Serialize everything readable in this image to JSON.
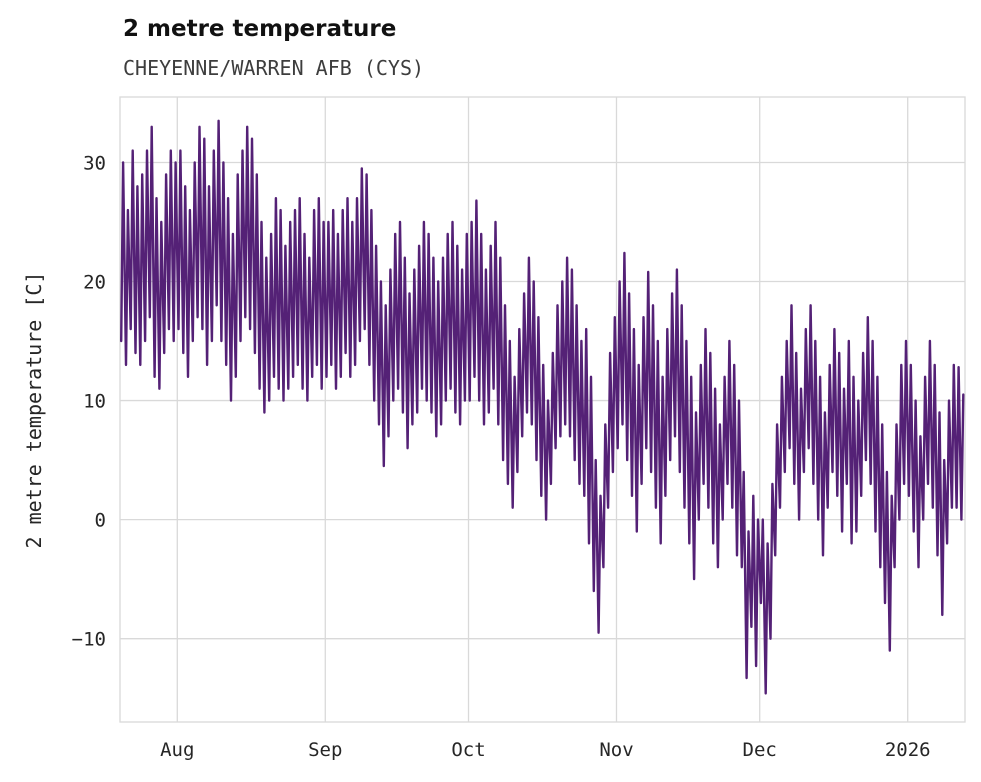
{
  "chart_data": {
    "type": "line",
    "title": "2 metre temperature",
    "subtitle": "CHEYENNE/WARREN AFB (CYS)",
    "xlabel": "",
    "ylabel": "2 metre temperature [C]",
    "line_color": "#542176",
    "grid_color": "#d9d9d9",
    "background": "#ffffff",
    "grid": true,
    "legend": "none",
    "ylim": [
      -17,
      35.5
    ],
    "yticks": [
      {
        "value": -10,
        "label": "−10"
      },
      {
        "value": 0,
        "label": "0"
      },
      {
        "value": 10,
        "label": "10"
      },
      {
        "value": 20,
        "label": "20"
      },
      {
        "value": 30,
        "label": "30"
      }
    ],
    "x_range": [
      0,
      177
    ],
    "x_description": "days across plot; series holds one daily min and max per day, Jul through early Jan",
    "xticks": [
      {
        "pos": 12,
        "label": "Aug"
      },
      {
        "pos": 43,
        "label": "Sep"
      },
      {
        "pos": 73,
        "label": "Oct"
      },
      {
        "pos": 104,
        "label": "Nov"
      },
      {
        "pos": 134,
        "label": "Dec"
      },
      {
        "pos": 165,
        "label": "2026"
      }
    ],
    "series": [
      {
        "name": "2 metre temperature",
        "daily_max": [
          30,
          26,
          31,
          28,
          29,
          31,
          33,
          27,
          25,
          29,
          31,
          30,
          31,
          28,
          26,
          30,
          33,
          32,
          28,
          31,
          33.5,
          30,
          27,
          24,
          29,
          31,
          33,
          32,
          29,
          25,
          22,
          24,
          27,
          26,
          23,
          25,
          26,
          27,
          24,
          22,
          26,
          27,
          25,
          25,
          26,
          24,
          26,
          27,
          25,
          27,
          29.5,
          29,
          26,
          23,
          20,
          18,
          21,
          24,
          25,
          22,
          19,
          21,
          23,
          25,
          24,
          22,
          20,
          22,
          24,
          25,
          23,
          21,
          24,
          25,
          26.8,
          24,
          21,
          23,
          25,
          22,
          18,
          15,
          12,
          16,
          19,
          22,
          20,
          17,
          13,
          10,
          14,
          18,
          20,
          22,
          21,
          18,
          15,
          16,
          12,
          5,
          2,
          8,
          14,
          17,
          20,
          22.4,
          19,
          16,
          13,
          17,
          20.8,
          18,
          15,
          12,
          16,
          19,
          21,
          18,
          15,
          12,
          9,
          13,
          16,
          14,
          11,
          8,
          12,
          15,
          13,
          10,
          4,
          -1,
          2,
          0,
          0,
          -2,
          3,
          8,
          12,
          15,
          18,
          14,
          11,
          16,
          18,
          15,
          12,
          9,
          13,
          16,
          14,
          11,
          15,
          12,
          10,
          14,
          17,
          15,
          12,
          8,
          4,
          2,
          8,
          13,
          15,
          13,
          10,
          7,
          12,
          15,
          13,
          9,
          5,
          10,
          13,
          12.8,
          10.5
        ],
        "daily_min": [
          15,
          13,
          16,
          14,
          13,
          15,
          17,
          12,
          11,
          14,
          16,
          15,
          16,
          14,
          12,
          15,
          17,
          16,
          13,
          15,
          18,
          15,
          13,
          10,
          12,
          15,
          17,
          16,
          14,
          11,
          9,
          10,
          12,
          11,
          10,
          11,
          12,
          13,
          11,
          10,
          12,
          13,
          11,
          12,
          13,
          11,
          12,
          14,
          12,
          13,
          15,
          16,
          13,
          10,
          8,
          4.5,
          7,
          10,
          11,
          9,
          6,
          8,
          9,
          11,
          10,
          9,
          7,
          8,
          10,
          11,
          9,
          8,
          10,
          10,
          12,
          10,
          8,
          9,
          11,
          8,
          5,
          3,
          1,
          4,
          7,
          9,
          8,
          5,
          2,
          0,
          3,
          6,
          7,
          8,
          7,
          5,
          3,
          2,
          -2,
          -6,
          -9.5,
          -4,
          1,
          4,
          6,
          8,
          5,
          2,
          -1,
          3,
          6,
          4,
          1,
          -2,
          2,
          5,
          7,
          4,
          1,
          -2,
          -5,
          0,
          3,
          1,
          -2,
          -4,
          0,
          3,
          1,
          -3,
          -4,
          -13.3,
          -9,
          -12.3,
          -7,
          -14.6,
          -10,
          -3,
          1,
          4,
          6,
          3,
          0,
          4,
          6,
          3,
          0,
          -3,
          1,
          4,
          2,
          -1,
          3,
          -2,
          -1,
          2,
          5,
          3,
          -1,
          -4,
          -7,
          -11,
          -4,
          0,
          3,
          2,
          -1,
          -4,
          0,
          3,
          1,
          -3,
          -8,
          -2,
          1,
          1,
          0
        ]
      }
    ]
  }
}
